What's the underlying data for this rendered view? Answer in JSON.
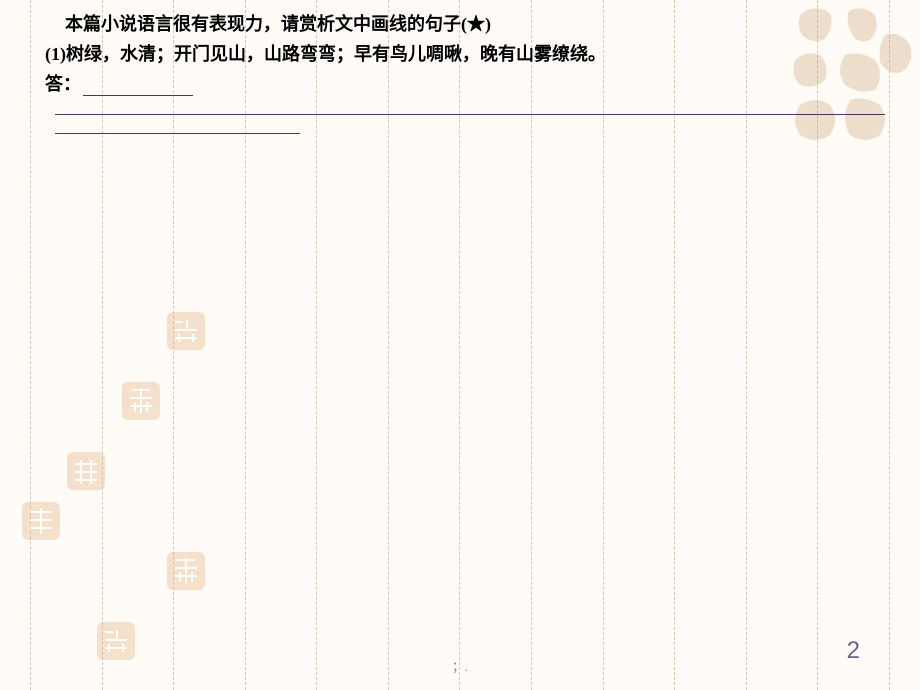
{
  "question": {
    "line1": "本篇小说语言很有表现力，请赏析文中画线的句子(★)",
    "line2": "(1)树绿，水清；开门见山，山路弯弯；早有鸟儿啁啾，晚有山雾缭绕。",
    "answer_label": "答："
  },
  "footer": {
    "text": "；."
  },
  "page_number": "2",
  "colors": {
    "underline": "#5a2d6b",
    "seal_fill": "#e6b88a",
    "seal_stroke": "#d4a574",
    "calligraphy": "#c79b6b",
    "dashed": "#d4c9b8"
  },
  "layout": {
    "dashed_line_count": 13
  }
}
